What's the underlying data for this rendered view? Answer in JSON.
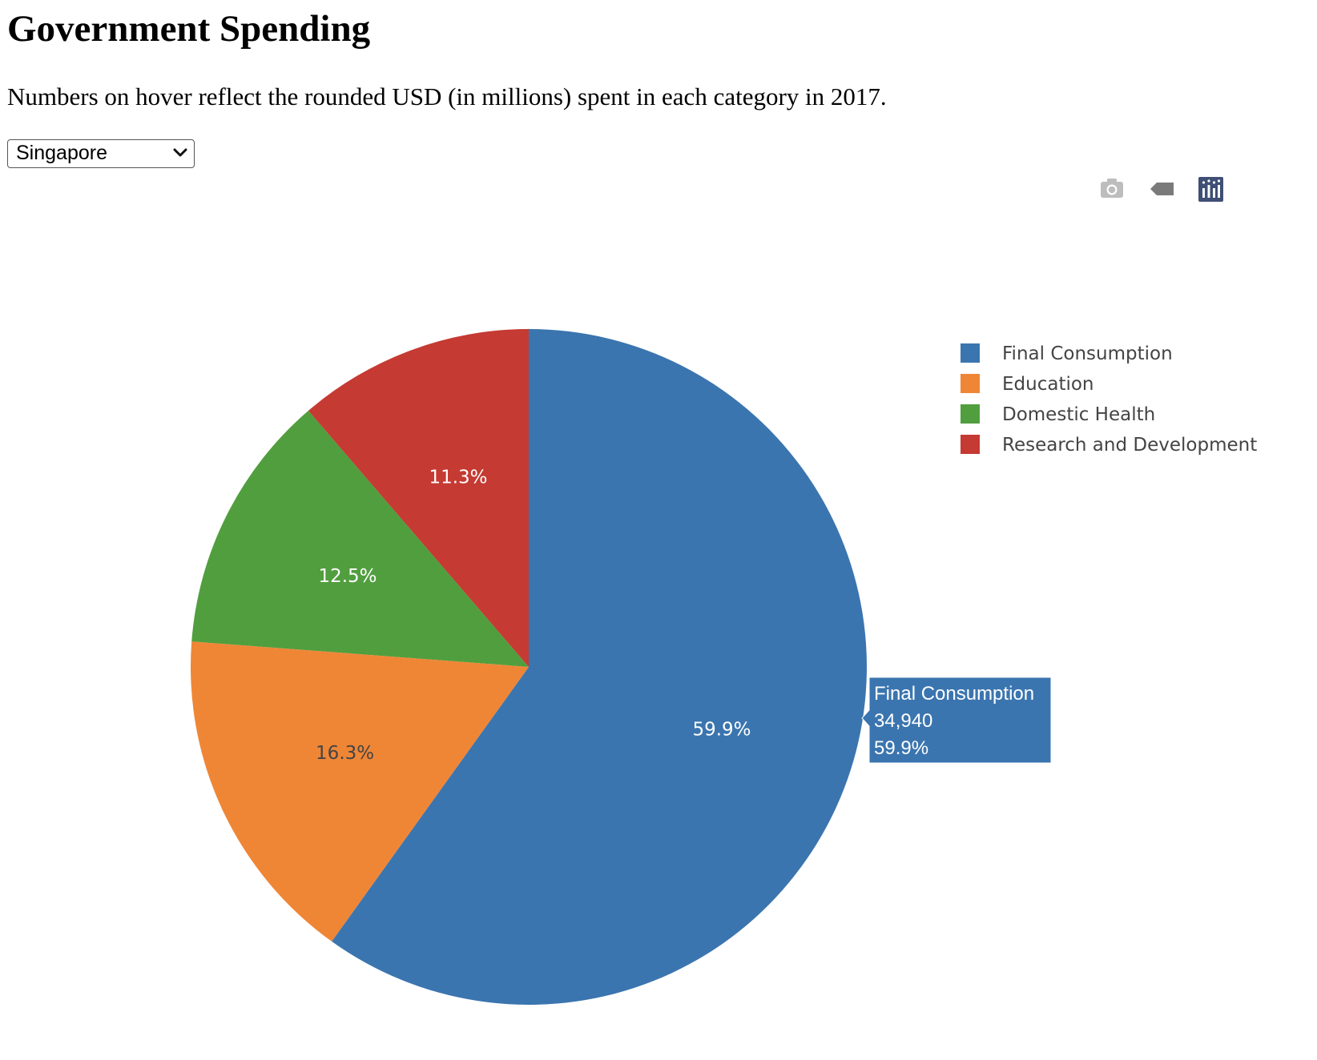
{
  "page": {
    "title": "Government Spending",
    "subtitle": "Numbers on hover reflect the rounded USD (in millions) spent in each category in 2017."
  },
  "country_select": {
    "selected": "Singapore"
  },
  "modebar": {
    "buttons": [
      {
        "name": "camera-icon",
        "tooltip": "Download plot as a png"
      },
      {
        "name": "tag-icon",
        "tooltip": "Show closest data on hover"
      },
      {
        "name": "plotly-logo-icon",
        "tooltip": "Produced with Plotly"
      }
    ]
  },
  "chart_data": {
    "type": "pie",
    "labels": [
      "Final Consumption",
      "Education",
      "Domestic Health",
      "Research and Development"
    ],
    "values": [
      34940,
      9507,
      7291,
      6591
    ],
    "percent_labels": [
      "59.9%",
      "16.3%",
      "12.5%",
      "11.3%"
    ],
    "colors": [
      "#3b75af",
      "#ef8636",
      "#519e3e",
      "#c53a32"
    ],
    "label_text_colors": [
      "#ffffff",
      "#444444",
      "#ffffff",
      "#ffffff"
    ],
    "legend_position": "top-right",
    "hover": {
      "label": "Final Consumption",
      "value": "34,940",
      "percent": "59.9%"
    }
  }
}
